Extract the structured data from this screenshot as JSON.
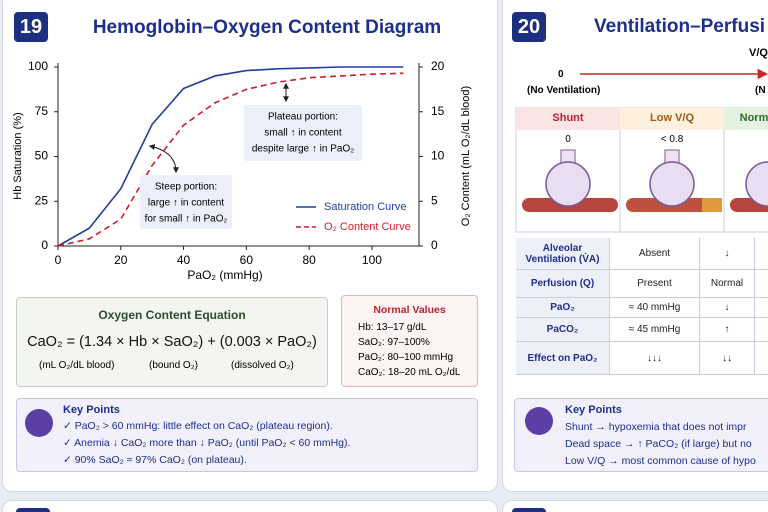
{
  "left_panel": {
    "number": "19",
    "equation": {
      "title": "Oxygen Content Equation",
      "formula": "CaO₂ = (1.34 × Hb × SaO₂) + (0.003 × PaO₂)",
      "notes": [
        "(mL O₂/dL blood)",
        "(bound O₂)",
        "(dissolved O₂)"
      ]
    },
    "normal_values": {
      "title": "Normal Values",
      "items": [
        "Hb: 13–17 g/dL",
        "SaO₂: 97–100%",
        "PaO₂: 80–100 mmHg",
        "CaO₂: 18–20 mL O₂/dL"
      ]
    },
    "key_points": {
      "title": "Key Points",
      "items": [
        "✓ PaO₂ > 60 mmHg: little effect on CaO₂ (plateau region).",
        "✓ Anemia ↓ CaO₂ more than ↓ PaO₂ (until PaO₂ < 60 mmHg).",
        "✓ 90% SaO₂ ≈ 97% CaO₂ (on plateau)."
      ]
    }
  },
  "chart_data": {
    "type": "line",
    "title": "Hemoglobin–Oxygen Content Diagram",
    "xlabel": "PaO₂ (mmHg)",
    "ylabel": "Hb Saturation (%)",
    "y2label": "O₂ Content (mL O₂/dL blood)",
    "x": [
      0,
      10,
      20,
      30,
      40,
      50,
      60,
      70,
      80,
      90,
      100,
      110
    ],
    "xlim": [
      0,
      115
    ],
    "xticks": [
      0,
      20,
      40,
      60,
      80,
      100
    ],
    "ylim": [
      0,
      100
    ],
    "yticks": [
      0,
      25,
      50,
      75,
      100
    ],
    "y2lim": [
      0,
      20
    ],
    "y2ticks": [
      0,
      5,
      10,
      15,
      20
    ],
    "grid": false,
    "legend": "lower right",
    "series": [
      {
        "name": "Saturation Curve",
        "color": "#1f3f9a",
        "dashed": false,
        "values": [
          0,
          10,
          32,
          68,
          88,
          95,
          98,
          99,
          99.5,
          100,
          100,
          100
        ]
      },
      {
        "name": "O₂ Content Curve",
        "color": "#cc1f2a",
        "dashed": true,
        "axis": "y2",
        "values": [
          0,
          0.8,
          3,
          9,
          13.5,
          16,
          17.5,
          18.3,
          18.8,
          19,
          19.2,
          19.3
        ]
      }
    ],
    "annotations": [
      [
        "Plateau portion:",
        "small ↑ in content",
        "despite large ↑ in PaO₂"
      ],
      [
        "Steep portion:",
        "large ↑ in content",
        "for small ↑ in PaO₂"
      ]
    ]
  },
  "right_panel": {
    "number": "20",
    "title": "Ventilation–Perfusi",
    "scale_label": "V/Q",
    "scale_start": "0",
    "scale_start_note": "(No Ventilation)",
    "scale_end_note": "(N",
    "columns": [
      "Shunt",
      "Low V/Q",
      "Norm"
    ],
    "ratios": [
      "0",
      "< 0.8"
    ],
    "rows": [
      [
        "Alveolar Ventilation (V̇A)",
        "Absent",
        "↓"
      ],
      [
        "Perfusion (Q)",
        "Present",
        "Normal"
      ],
      [
        "PaO₂",
        "≈ 40 mmHg",
        "↓"
      ],
      [
        "PaCO₂",
        "≈ 45 mmHg",
        "↑"
      ],
      [
        "Effect on PaO₂",
        "↓↓↓",
        "↓↓"
      ]
    ],
    "key_points": {
      "title": "Key Points",
      "items": [
        "Shunt → hypoxemia that does not impr",
        "Dead space → ↑ PaCO₂ (if large) but no",
        "Low V/Q → most common cause of hypo"
      ]
    }
  }
}
